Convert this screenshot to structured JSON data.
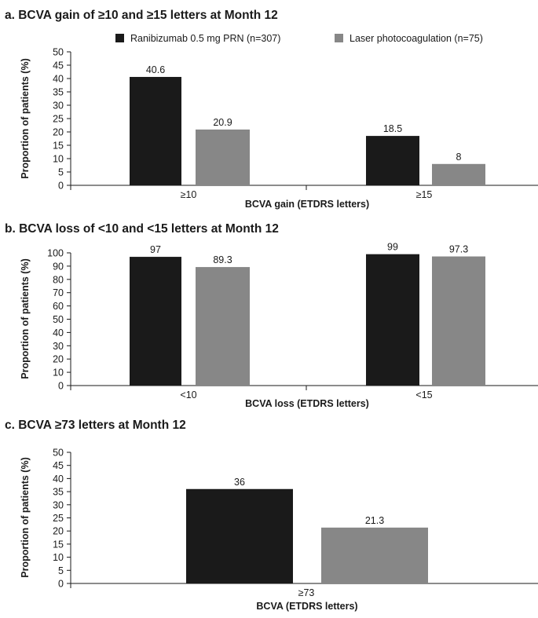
{
  "legend": {
    "items": [
      {
        "label": "Ranibizumab 0.5 mg PRN (n=307)",
        "color": "#1a1a1a"
      },
      {
        "label": "Laser photocoagulation (n=75)",
        "color": "#878787"
      }
    ]
  },
  "chart_data": [
    {
      "type": "bar",
      "title": "a. BCVA gain of ≥10 and ≥15 letters at Month 12",
      "xlabel": "BCVA gain (ETDRS letters)",
      "ylabel": "Proportion of patients (%)",
      "ylim": [
        0,
        50
      ],
      "yticks": [
        0,
        5,
        10,
        15,
        20,
        25,
        30,
        35,
        40,
        45,
        50
      ],
      "categories": [
        "≥10",
        "≥15"
      ],
      "series": [
        {
          "name": "Ranibizumab 0.5 mg PRN (n=307)",
          "color": "#1a1a1a",
          "values": [
            40.6,
            18.5
          ],
          "labels": [
            "40.6",
            "18.5"
          ]
        },
        {
          "name": "Laser photocoagulation (n=75)",
          "color": "#878787",
          "values": [
            20.9,
            8
          ],
          "labels": [
            "20.9",
            "8"
          ]
        }
      ]
    },
    {
      "type": "bar",
      "title": "b. BCVA loss of <10 and <15 letters at Month 12",
      "xlabel": "BCVA loss (ETDRS letters)",
      "ylabel": "Proportion of patients (%)",
      "ylim": [
        0,
        100
      ],
      "yticks": [
        0,
        10,
        20,
        30,
        40,
        50,
        60,
        70,
        80,
        90,
        100
      ],
      "categories": [
        "<10",
        "<15"
      ],
      "series": [
        {
          "name": "Ranibizumab 0.5 mg PRN (n=307)",
          "color": "#1a1a1a",
          "values": [
            97,
            99
          ],
          "labels": [
            "97",
            "99"
          ]
        },
        {
          "name": "Laser photocoagulation (n=75)",
          "color": "#878787",
          "values": [
            89.3,
            97.3
          ],
          "labels": [
            "89.3",
            "97.3"
          ]
        }
      ]
    },
    {
      "type": "bar",
      "title": "c. BCVA ≥73 letters at Month 12",
      "xlabel": "BCVA (ETDRS letters)",
      "ylabel": "Proportion of patients (%)",
      "ylim": [
        0,
        50
      ],
      "yticks": [
        0,
        5,
        10,
        15,
        20,
        25,
        30,
        35,
        40,
        45,
        50
      ],
      "categories": [
        "≥73"
      ],
      "series": [
        {
          "name": "Ranibizumab 0.5 mg PRN (n=307)",
          "color": "#1a1a1a",
          "values": [
            36
          ],
          "labels": [
            "36"
          ]
        },
        {
          "name": "Laser photocoagulation (n=75)",
          "color": "#878787",
          "values": [
            21.3
          ],
          "labels": [
            "21.3"
          ]
        }
      ]
    }
  ]
}
